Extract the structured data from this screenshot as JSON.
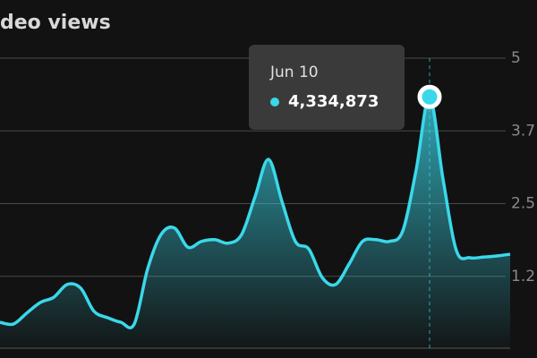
{
  "chart_data": {
    "type": "area",
    "title": "deo views",
    "color": "#3ad8ea",
    "grid": true,
    "ylim": [
      0,
      5
    ],
    "yticks": [
      {
        "value": 1.25,
        "label": "1.2"
      },
      {
        "value": 2.5,
        "label": "2.5"
      },
      {
        "value": 3.75,
        "label": "3.7"
      },
      5
    ],
    "values": [
      0.46,
      0.43,
      0.62,
      0.8,
      0.89,
      1.11,
      1.05,
      0.65,
      0.54,
      0.46,
      0.43,
      1.38,
      1.97,
      2.08,
      1.75,
      1.85,
      1.88,
      1.82,
      1.97,
      2.62,
      3.26,
      2.54,
      1.85,
      1.72,
      1.23,
      1.11,
      1.46,
      1.85,
      1.88,
      1.85,
      2.03,
      3.08,
      4.334873,
      2.92,
      1.69,
      1.57,
      1.58,
      1.6,
      1.63
    ],
    "tooltip": {
      "index": 32,
      "label": "Jun 10",
      "value_label": "4,334,873"
    }
  }
}
